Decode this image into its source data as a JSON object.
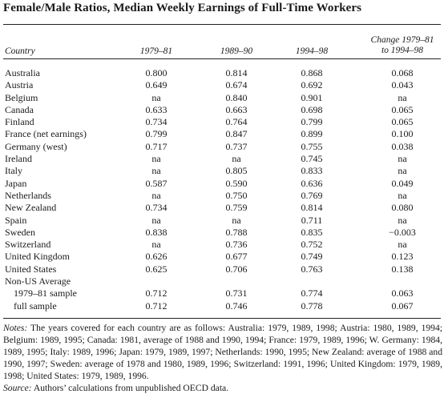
{
  "title": "Female/Male Ratios, Median Weekly Earnings of Full-Time Workers",
  "headers": {
    "country": "Country",
    "c1": "1979–81",
    "c2": "1989–90",
    "c3": "1994–98",
    "c4_line1": "Change 1979–81",
    "c4_line2": "to 1994–98"
  },
  "rows": [
    {
      "name": "Australia",
      "v": [
        "0.800",
        "0.814",
        "0.868",
        "0.068"
      ]
    },
    {
      "name": "Austria",
      "v": [
        "0.649",
        "0.674",
        "0.692",
        "0.043"
      ]
    },
    {
      "name": "Belgium",
      "v": [
        "na",
        "0.840",
        "0.901",
        "na"
      ]
    },
    {
      "name": "Canada",
      "v": [
        "0.633",
        "0.663",
        "0.698",
        "0.065"
      ]
    },
    {
      "name": "Finland",
      "v": [
        "0.734",
        "0.764",
        "0.799",
        "0.065"
      ]
    },
    {
      "name": "France (net earnings)",
      "v": [
        "0.799",
        "0.847",
        "0.899",
        "0.100"
      ]
    },
    {
      "name": "Germany (west)",
      "v": [
        "0.717",
        "0.737",
        "0.755",
        "0.038"
      ]
    },
    {
      "name": "Ireland",
      "v": [
        "na",
        "na",
        "0.745",
        "na"
      ]
    },
    {
      "name": "Italy",
      "v": [
        "na",
        "0.805",
        "0.833",
        "na"
      ]
    },
    {
      "name": "Japan",
      "v": [
        "0.587",
        "0.590",
        "0.636",
        "0.049"
      ]
    },
    {
      "name": "Netherlands",
      "v": [
        "na",
        "0.750",
        "0.769",
        "na"
      ]
    },
    {
      "name": "New Zealand",
      "v": [
        "0.734",
        "0.759",
        "0.814",
        "0.080"
      ]
    },
    {
      "name": "Spain",
      "v": [
        "na",
        "na",
        "0.711",
        "na"
      ]
    },
    {
      "name": "Sweden",
      "v": [
        "0.838",
        "0.788",
        "0.835",
        "−0.003"
      ]
    },
    {
      "name": "Switzerland",
      "v": [
        "na",
        "0.736",
        "0.752",
        "na"
      ]
    },
    {
      "name": "United Kingdom",
      "v": [
        "0.626",
        "0.677",
        "0.749",
        "0.123"
      ]
    },
    {
      "name": "United States",
      "v": [
        "0.625",
        "0.706",
        "0.763",
        "0.138"
      ]
    },
    {
      "name": "Non-US Average",
      "v": [
        "",
        "",
        "",
        ""
      ]
    },
    {
      "name": "1979–81 sample",
      "sub": true,
      "v": [
        "0.712",
        "0.731",
        "0.774",
        "0.063"
      ]
    },
    {
      "name": "full sample",
      "sub": true,
      "v": [
        "0.712",
        "0.746",
        "0.778",
        "0.067"
      ]
    }
  ],
  "notes_label": "Notes:",
  "notes_text": " The years covered for each country are as follows: Australia: 1979, 1989, 1998; Austria: 1980, 1989, 1994; Belgium: 1989, 1995; Canada: 1981, average of 1988 and 1990, 1994; France: 1979, 1989, 1996; W. Germany: 1984, 1989, 1995; Italy: 1989, 1996; Japan: 1979, 1989, 1997; Netherlands: 1990, 1995; New Zealand: average of 1988 and 1990, 1997; Sweden: average of 1978 and 1980, 1989, 1996; Switzerland: 1991, 1996; United Kingdom: 1979, 1989, 1998; United States: 1979, 1989, 1996.",
  "source_label": "Source:",
  "source_text": " Authors’ calculations from unpublished OECD data."
}
